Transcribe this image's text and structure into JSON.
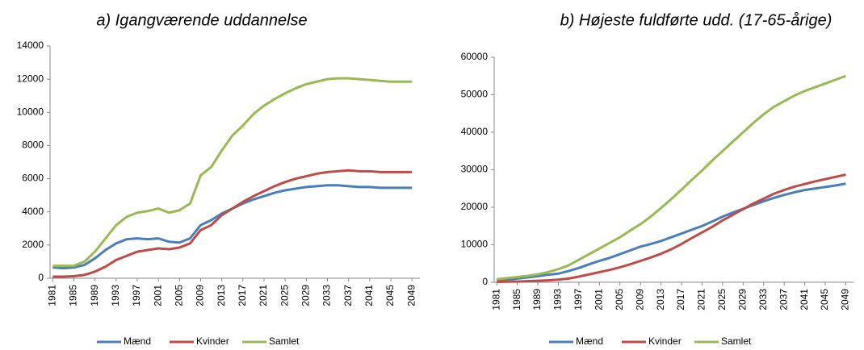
{
  "chart_data": [
    {
      "type": "line",
      "title": "a) Igangværende  uddannelse",
      "x": [
        1981,
        1983,
        1985,
        1987,
        1989,
        1991,
        1993,
        1995,
        1997,
        1999,
        2001,
        2003,
        2005,
        2007,
        2009,
        2011,
        2013,
        2015,
        2017,
        2019,
        2021,
        2023,
        2025,
        2027,
        2029,
        2031,
        2033,
        2035,
        2037,
        2039,
        2041,
        2043,
        2045,
        2047,
        2049
      ],
      "xlim": [
        1980.5,
        2050.5
      ],
      "xticks": [
        1981,
        1985,
        1989,
        1993,
        1997,
        2001,
        2005,
        2009,
        2013,
        2017,
        2021,
        2025,
        2029,
        2033,
        2037,
        2041,
        2045,
        2049
      ],
      "ylim": [
        0,
        14000
      ],
      "yticks": [
        0,
        2000,
        4000,
        6000,
        8000,
        10000,
        12000,
        14000
      ],
      "legend": "bottom",
      "series": [
        {
          "name": "Mænd",
          "color": "#4a7ebb",
          "values": [
            650,
            600,
            650,
            800,
            1200,
            1700,
            2100,
            2350,
            2400,
            2350,
            2400,
            2200,
            2150,
            2400,
            3200,
            3500,
            3900,
            4200,
            4500,
            4750,
            4950,
            5150,
            5300,
            5400,
            5500,
            5550,
            5600,
            5600,
            5550,
            5500,
            5500,
            5450,
            5450,
            5450,
            5450
          ]
        },
        {
          "name": "Kvinder",
          "color": "#be4b48",
          "values": [
            100,
            100,
            120,
            200,
            400,
            700,
            1100,
            1350,
            1600,
            1700,
            1800,
            1750,
            1850,
            2100,
            2900,
            3200,
            3800,
            4200,
            4600,
            4950,
            5250,
            5550,
            5800,
            6000,
            6150,
            6300,
            6400,
            6450,
            6500,
            6450,
            6450,
            6400,
            6400,
            6400,
            6400
          ]
        },
        {
          "name": "Samlet",
          "color": "#98b954",
          "values": [
            750,
            750,
            750,
            1000,
            1600,
            2400,
            3200,
            3700,
            3950,
            4050,
            4200,
            3950,
            4100,
            4500,
            6200,
            6700,
            7700,
            8600,
            9200,
            9900,
            10400,
            10800,
            11150,
            11450,
            11700,
            11850,
            12000,
            12050,
            12050,
            12000,
            11950,
            11900,
            11850,
            11850,
            11850
          ]
        }
      ]
    },
    {
      "type": "line",
      "title": "b) Højeste fuldførte udd. (17-65-årige)",
      "x": [
        1981,
        1983,
        1985,
        1987,
        1989,
        1991,
        1993,
        1995,
        1997,
        1999,
        2001,
        2003,
        2005,
        2007,
        2009,
        2011,
        2013,
        2015,
        2017,
        2019,
        2021,
        2023,
        2025,
        2027,
        2029,
        2031,
        2033,
        2035,
        2037,
        2039,
        2041,
        2043,
        2045,
        2047,
        2049
      ],
      "xlim": [
        1980.5,
        2050.5
      ],
      "xticks": [
        1981,
        1985,
        1989,
        1993,
        1997,
        2001,
        2005,
        2009,
        2013,
        2017,
        2021,
        2025,
        2029,
        2033,
        2037,
        2041,
        2045,
        2049
      ],
      "ylim": [
        0,
        60000
      ],
      "yticks": [
        0,
        10000,
        20000,
        30000,
        40000,
        50000,
        60000
      ],
      "legend": "bottom",
      "series": [
        {
          "name": "Mænd",
          "color": "#4a7ebb",
          "values": [
            500,
            700,
            1000,
            1300,
            1600,
            2000,
            2300,
            3000,
            3800,
            4800,
            5700,
            6500,
            7500,
            8500,
            9500,
            10200,
            11000,
            12000,
            13000,
            14000,
            15000,
            16200,
            17500,
            18600,
            19600,
            20600,
            21600,
            22500,
            23300,
            24000,
            24600,
            25000,
            25400,
            25800,
            26300
          ]
        },
        {
          "name": "Kvinder",
          "color": "#be4b48",
          "values": [
            100,
            150,
            200,
            300,
            400,
            500,
            700,
            1000,
            1500,
            2100,
            2700,
            3300,
            4000,
            4800,
            5700,
            6600,
            7600,
            8800,
            10200,
            11800,
            13300,
            14800,
            16500,
            18000,
            19500,
            21000,
            22300,
            23600,
            24600,
            25500,
            26200,
            26900,
            27500,
            28100,
            28700
          ]
        },
        {
          "name": "Samlet",
          "color": "#98b954",
          "values": [
            800,
            1100,
            1400,
            1700,
            2100,
            2700,
            3500,
            4500,
            6000,
            7500,
            9000,
            10500,
            12000,
            13800,
            15500,
            17500,
            19800,
            22200,
            24700,
            27300,
            29800,
            32500,
            35000,
            37500,
            40000,
            42500,
            44800,
            46800,
            48300,
            49800,
            51000,
            52000,
            53000,
            54000,
            55000
          ]
        }
      ]
    }
  ]
}
